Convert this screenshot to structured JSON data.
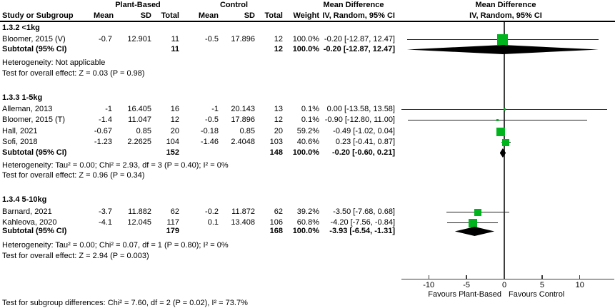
{
  "header": {
    "group1": "Plant-Based",
    "group2": "Control",
    "md_col": "Mean Difference",
    "iv_col": "IV, Random, 95% CI",
    "md_plot": "Mean Difference",
    "iv_plot": "IV, Random, 95% CI"
  },
  "columns": {
    "study": "Study or Subgroup",
    "mean": "Mean",
    "sd": "SD",
    "total": "Total",
    "weight": "Weight",
    "ci": "IV, Random, 95% CI"
  },
  "colors": {
    "marker_green": "#00b41e",
    "diamond_black": "#000000",
    "line": "#222222"
  },
  "chart_data": {
    "type": "scatter",
    "chart_kind": "forest-plot-meta-analysis",
    "effect_measure": "Mean Difference, IV, Random, 95% CI",
    "x_axis": {
      "ticks": [
        -10,
        -5,
        0,
        5,
        10
      ],
      "xlim": [
        -13.6,
        14.6
      ],
      "label_left": "Favours Plant-Based",
      "label_right": "Favours Control"
    },
    "subgroups": [
      {
        "label": "1.3.2 <1kg",
        "studies": [
          {
            "name": "Bloomer, 2015 (V)",
            "pb_mean": "-0.7",
            "pb_sd": "12.901",
            "pb_total": "11",
            "c_mean": "-0.5",
            "c_sd": "17.896",
            "c_total": "12",
            "weight": "100.0%",
            "weight_pct": 100.0,
            "md": -0.2,
            "ci_low": -12.87,
            "ci_high": 12.47,
            "ci_text": "-0.20 [-12.87, 12.47]"
          }
        ],
        "subtotal": {
          "label": "Subtotal (95% CI)",
          "pb_total": "11",
          "c_total": "12",
          "weight": "100.0%",
          "md": -0.2,
          "ci_low": -12.87,
          "ci_high": 12.47,
          "ci_text": "-0.20 [-12.87, 12.47]"
        },
        "heterogeneity": "Heterogeneity: Not applicable",
        "overall_effect": "Test for overall effect: Z = 0.03 (P = 0.98)"
      },
      {
        "label": "1.3.3 1-5kg",
        "studies": [
          {
            "name": "Alleman, 2013",
            "pb_mean": "-1",
            "pb_sd": "16.405",
            "pb_total": "16",
            "c_mean": "-1",
            "c_sd": "20.143",
            "c_total": "13",
            "weight": "0.1%",
            "weight_pct": 0.1,
            "md": 0.0,
            "ci_low": -13.58,
            "ci_high": 13.58,
            "ci_text": "0.00 [-13.58, 13.58]"
          },
          {
            "name": "Bloomer, 2015 (T)",
            "pb_mean": "-1.4",
            "pb_sd": "11.047",
            "pb_total": "12",
            "c_mean": "-0.5",
            "c_sd": "17.896",
            "c_total": "12",
            "weight": "0.1%",
            "weight_pct": 0.1,
            "md": -0.9,
            "ci_low": -12.8,
            "ci_high": 11.0,
            "ci_text": "-0.90 [-12.80, 11.00]"
          },
          {
            "name": "Hall, 2021",
            "pb_mean": "-0.67",
            "pb_sd": "0.85",
            "pb_total": "20",
            "c_mean": "-0.18",
            "c_sd": "0.85",
            "c_total": "20",
            "weight": "59.2%",
            "weight_pct": 59.2,
            "md": -0.49,
            "ci_low": -1.02,
            "ci_high": 0.04,
            "ci_text": "-0.49 [-1.02, 0.04]"
          },
          {
            "name": "Sofi, 2018",
            "pb_mean": "-1.23",
            "pb_sd": "2.2625",
            "pb_total": "104",
            "c_mean": "-1.46",
            "c_sd": "2.4048",
            "c_total": "103",
            "weight": "40.6%",
            "weight_pct": 40.6,
            "md": 0.23,
            "ci_low": -0.41,
            "ci_high": 0.87,
            "ci_text": "0.23 [-0.41, 0.87]"
          }
        ],
        "subtotal": {
          "label": "Subtotal (95% CI)",
          "pb_total": "152",
          "c_total": "148",
          "weight": "100.0%",
          "md": -0.2,
          "ci_low": -0.6,
          "ci_high": 0.21,
          "ci_text": "-0.20 [-0.60, 0.21]"
        },
        "heterogeneity": "Heterogeneity: Tau² = 0.00; Chi² = 2.93, df = 3 (P = 0.40); I² = 0%",
        "overall_effect": "Test for overall effect: Z = 0.96 (P = 0.34)"
      },
      {
        "label": "1.3.4 5-10kg",
        "studies": [
          {
            "name": "Barnard, 2021",
            "pb_mean": "-3.7",
            "pb_sd": "11.882",
            "pb_total": "62",
            "c_mean": "-0.2",
            "c_sd": "11.872",
            "c_total": "62",
            "weight": "39.2%",
            "weight_pct": 39.2,
            "md": -3.5,
            "ci_low": -7.68,
            "ci_high": 0.68,
            "ci_text": "-3.50 [-7.68, 0.68]"
          },
          {
            "name": "Kahleova, 2020",
            "pb_mean": "-4.1",
            "pb_sd": "12.045",
            "pb_total": "117",
            "c_mean": "0.1",
            "c_sd": "13.408",
            "c_total": "106",
            "weight": "60.8%",
            "weight_pct": 60.8,
            "md": -4.2,
            "ci_low": -7.56,
            "ci_high": -0.84,
            "ci_text": "-4.20 [-7.56, -0.84]"
          }
        ],
        "subtotal": {
          "label": "Subtotal (95% CI)",
          "pb_total": "179",
          "c_total": "168",
          "weight": "100.0%",
          "md": -3.93,
          "ci_low": -6.54,
          "ci_high": -1.31,
          "ci_text": "-3.93 [-6.54, -1.31]"
        },
        "heterogeneity": "Heterogeneity: Tau² = 0.00; Chi² = 0.07, df = 1 (P = 0.80); I² = 0%",
        "overall_effect": "Test for overall effect: Z = 2.94 (P = 0.003)"
      }
    ],
    "footer": "Test for subgroup differences: Chi² = 7.60, df = 2 (P = 0.02), I² = 73.7%"
  }
}
